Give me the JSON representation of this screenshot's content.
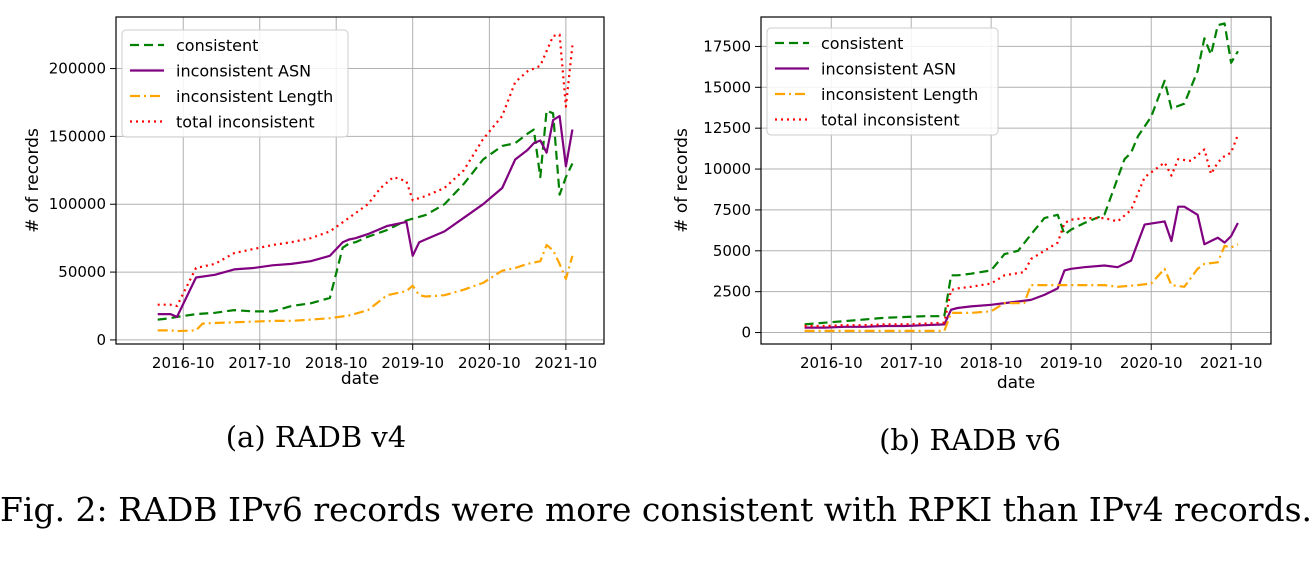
{
  "figure": {
    "caption": "Fig. 2: RADB IPv6 records were more consistent with RPKI than IPv4 records."
  },
  "chart_data": [
    {
      "type": "line",
      "subcaption": "(a) RADB v4",
      "title": "",
      "xlabel": "date",
      "ylabel": "# of records",
      "xlim": [
        "2015-11-15",
        "2022-04-01"
      ],
      "ylim": [
        -3000,
        238000
      ],
      "x_ticks": [
        "2016-10",
        "2017-10",
        "2018-10",
        "2019-10",
        "2020-10",
        "2021-10"
      ],
      "y_ticks": [
        0,
        50000,
        100000,
        150000,
        200000
      ],
      "grid": true,
      "legend_position": "top-left",
      "series": [
        {
          "name": "consistent",
          "color": "#008000",
          "style": "dashed",
          "x": [
            "2016-06-01",
            "2016-08-01",
            "2016-09-01",
            "2016-12-01",
            "2017-03-01",
            "2017-06-01",
            "2017-09-01",
            "2017-12-01",
            "2018-03-01",
            "2018-06-01",
            "2018-09-01",
            "2018-11-01",
            "2018-12-01",
            "2019-01-01",
            "2019-03-01",
            "2019-06-01",
            "2019-09-01",
            "2019-12-01",
            "2020-03-01",
            "2020-06-01",
            "2020-09-01",
            "2020-12-01",
            "2021-02-01",
            "2021-04-01",
            "2021-05-01",
            "2021-06-01",
            "2021-07-01",
            "2021-08-01",
            "2021-09-01",
            "2021-10-01",
            "2021-11-01"
          ],
          "values": [
            15000,
            16000,
            17000,
            19000,
            20000,
            22000,
            21000,
            21000,
            25000,
            27000,
            31000,
            68000,
            71000,
            72000,
            76000,
            81000,
            88000,
            92000,
            100000,
            115000,
            133000,
            143000,
            145000,
            152000,
            155000,
            120000,
            169000,
            167000,
            107000,
            120000,
            130000
          ]
        },
        {
          "name": "inconsistent ASN",
          "color": "#800080",
          "style": "solid",
          "x": [
            "2016-06-01",
            "2016-08-01",
            "2016-09-01",
            "2016-12-01",
            "2017-03-01",
            "2017-06-01",
            "2017-09-01",
            "2017-12-01",
            "2018-03-01",
            "2018-06-01",
            "2018-09-01",
            "2018-11-01",
            "2018-12-01",
            "2019-01-01",
            "2019-03-01",
            "2019-06-01",
            "2019-09-01",
            "2019-10-01",
            "2019-11-01",
            "2019-12-01",
            "2020-03-01",
            "2020-06-01",
            "2020-09-01",
            "2020-12-01",
            "2021-02-01",
            "2021-04-01",
            "2021-05-01",
            "2021-06-01",
            "2021-07-01",
            "2021-08-01",
            "2021-09-01",
            "2021-10-01",
            "2021-11-01"
          ],
          "values": [
            19000,
            19000,
            17000,
            46000,
            48000,
            52000,
            53000,
            55000,
            56000,
            58000,
            62000,
            72000,
            74000,
            75000,
            78000,
            84000,
            87000,
            62000,
            72000,
            74000,
            80000,
            90000,
            100000,
            112000,
            133000,
            140000,
            145000,
            147000,
            138000,
            162000,
            165000,
            128000,
            155000
          ]
        },
        {
          "name": "inconsistent Length",
          "color": "#ffa500",
          "style": "dashdot",
          "x": [
            "2016-06-01",
            "2016-08-01",
            "2016-09-01",
            "2016-12-01",
            "2017-01-01",
            "2017-03-01",
            "2017-06-01",
            "2017-09-01",
            "2017-12-01",
            "2018-03-01",
            "2018-06-01",
            "2018-09-01",
            "2018-12-01",
            "2019-03-01",
            "2019-06-01",
            "2019-09-01",
            "2019-10-01",
            "2019-11-01",
            "2019-12-01",
            "2020-03-01",
            "2020-06-01",
            "2020-09-01",
            "2020-12-01",
            "2021-02-01",
            "2021-04-01",
            "2021-06-01",
            "2021-07-01",
            "2021-08-01",
            "2021-09-01",
            "2021-10-01",
            "2021-11-01"
          ],
          "values": [
            7000,
            7000,
            6500,
            7000,
            12000,
            12500,
            13000,
            13500,
            14000,
            14000,
            15000,
            16000,
            18000,
            22000,
            33000,
            36000,
            40000,
            33000,
            32000,
            33000,
            37000,
            42000,
            51000,
            53000,
            56000,
            58000,
            70000,
            66000,
            56000,
            45000,
            62000
          ]
        },
        {
          "name": "total inconsistent",
          "color": "#ff0000",
          "style": "dotted",
          "x": [
            "2016-06-01",
            "2016-08-01",
            "2016-09-01",
            "2016-12-01",
            "2017-03-01",
            "2017-06-01",
            "2017-09-01",
            "2017-12-01",
            "2018-03-01",
            "2018-06-01",
            "2018-09-01",
            "2018-12-01",
            "2019-03-01",
            "2019-05-01",
            "2019-07-01",
            "2019-09-01",
            "2019-10-01",
            "2019-12-01",
            "2020-03-01",
            "2020-06-01",
            "2020-09-01",
            "2020-12-01",
            "2021-02-01",
            "2021-04-01",
            "2021-06-01",
            "2021-08-01",
            "2021-09-01",
            "2021-10-01",
            "2021-11-01"
          ],
          "values": [
            26000,
            26000,
            25000,
            53000,
            56000,
            64000,
            67000,
            70000,
            72000,
            75000,
            80000,
            90000,
            100000,
            112000,
            120000,
            117000,
            103000,
            106000,
            112000,
            125000,
            148000,
            165000,
            190000,
            198000,
            202000,
            224000,
            225000,
            172000,
            217000
          ]
        }
      ]
    },
    {
      "type": "line",
      "subcaption": "(b) RADB v6",
      "title": "",
      "xlabel": "date",
      "ylabel": "# of records",
      "xlim": [
        "2015-11-15",
        "2022-04-01"
      ],
      "ylim": [
        -700,
        19300
      ],
      "x_ticks": [
        "2016-10",
        "2017-10",
        "2018-10",
        "2019-10",
        "2020-10",
        "2021-10"
      ],
      "y_ticks": [
        0,
        2500,
        5000,
        7500,
        10000,
        12500,
        15000,
        17500
      ],
      "grid": true,
      "legend_position": "top-left",
      "series": [
        {
          "name": "consistent",
          "color": "#008000",
          "style": "dashed",
          "x": [
            "2016-06-01",
            "2016-09-01",
            "2016-12-01",
            "2017-03-01",
            "2017-06-01",
            "2017-09-01",
            "2017-12-01",
            "2018-03-01",
            "2018-04-01",
            "2018-05-01",
            "2018-07-01",
            "2018-10-01",
            "2018-12-01",
            "2019-02-01",
            "2019-04-01",
            "2019-06-01",
            "2019-08-01",
            "2019-09-01",
            "2019-10-01",
            "2019-12-01",
            "2020-03-01",
            "2020-06-01",
            "2020-07-01",
            "2020-08-01",
            "2020-10-01",
            "2020-12-01",
            "2021-01-01",
            "2021-03-01",
            "2021-05-01",
            "2021-06-01",
            "2021-07-01",
            "2021-08-01",
            "2021-09-01",
            "2021-10-01",
            "2021-11-01"
          ],
          "values": [
            500,
            600,
            700,
            800,
            900,
            950,
            1000,
            1000,
            3500,
            3500,
            3600,
            3800,
            4800,
            5000,
            6000,
            7000,
            7200,
            6000,
            6300,
            6700,
            7200,
            10600,
            11000,
            12000,
            13200,
            15400,
            13700,
            14000,
            16000,
            18000,
            17000,
            18800,
            18900,
            16500,
            17200
          ]
        },
        {
          "name": "inconsistent ASN",
          "color": "#800080",
          "style": "solid",
          "x": [
            "2016-06-01",
            "2016-09-01",
            "2016-12-01",
            "2017-03-01",
            "2017-06-01",
            "2017-09-01",
            "2017-12-01",
            "2018-03-01",
            "2018-04-01",
            "2018-05-01",
            "2018-07-01",
            "2018-10-01",
            "2018-12-01",
            "2019-02-01",
            "2019-04-01",
            "2019-06-01",
            "2019-08-01",
            "2019-09-01",
            "2019-10-01",
            "2019-12-01",
            "2020-03-01",
            "2020-05-01",
            "2020-07-01",
            "2020-09-01",
            "2020-12-01",
            "2021-01-01",
            "2021-02-01",
            "2021-03-01",
            "2021-05-01",
            "2021-06-01",
            "2021-07-01",
            "2021-08-01",
            "2021-09-01",
            "2021-10-01",
            "2021-11-01"
          ],
          "values": [
            300,
            300,
            350,
            350,
            400,
            400,
            450,
            500,
            1400,
            1500,
            1600,
            1700,
            1800,
            1900,
            2000,
            2300,
            2700,
            3800,
            3900,
            4000,
            4100,
            4000,
            4400,
            6600,
            6800,
            5600,
            7700,
            7700,
            7200,
            5400,
            5600,
            5800,
            5500,
            5900,
            6700
          ]
        },
        {
          "name": "inconsistent Length",
          "color": "#ffa500",
          "style": "dashdot",
          "x": [
            "2016-06-01",
            "2016-09-01",
            "2016-12-01",
            "2017-03-01",
            "2017-06-01",
            "2017-09-01",
            "2017-12-01",
            "2018-03-01",
            "2018-04-01",
            "2018-07-01",
            "2018-10-01",
            "2018-12-01",
            "2019-03-01",
            "2019-04-01",
            "2019-06-01",
            "2019-09-01",
            "2019-12-01",
            "2020-03-01",
            "2020-05-01",
            "2020-08-01",
            "2020-10-01",
            "2020-12-01",
            "2021-01-01",
            "2021-03-01",
            "2021-05-01",
            "2021-06-01",
            "2021-08-01",
            "2021-09-01",
            "2021-10-01",
            "2021-11-01"
          ],
          "values": [
            100,
            100,
            100,
            100,
            100,
            100,
            100,
            100,
            1200,
            1200,
            1300,
            1800,
            1800,
            2900,
            2900,
            2900,
            2900,
            2900,
            2800,
            2900,
            3000,
            3900,
            2900,
            2800,
            3900,
            4200,
            4300,
            5300,
            5200,
            5400
          ]
        },
        {
          "name": "total inconsistent",
          "color": "#ff0000",
          "style": "dotted",
          "x": [
            "2016-06-01",
            "2016-09-01",
            "2016-12-01",
            "2017-03-01",
            "2017-06-01",
            "2017-09-01",
            "2017-12-01",
            "2018-03-01",
            "2018-04-01",
            "2018-05-01",
            "2018-07-01",
            "2018-10-01",
            "2018-12-01",
            "2019-03-01",
            "2019-04-01",
            "2019-06-01",
            "2019-08-01",
            "2019-09-01",
            "2019-10-01",
            "2019-12-01",
            "2020-03-01",
            "2020-05-01",
            "2020-07-01",
            "2020-09-01",
            "2020-12-01",
            "2021-01-01",
            "2021-02-01",
            "2021-04-01",
            "2021-06-01",
            "2021-07-01",
            "2021-08-01",
            "2021-09-01",
            "2021-10-01",
            "2021-11-01"
          ],
          "values": [
            400,
            400,
            450,
            450,
            500,
            500,
            550,
            600,
            2600,
            2700,
            2800,
            3000,
            3500,
            3700,
            4500,
            5000,
            5500,
            6700,
            6900,
            7000,
            7000,
            6800,
            7500,
            9500,
            10400,
            9600,
            10600,
            10500,
            11200,
            9700,
            10400,
            10800,
            11000,
            12100
          ]
        }
      ]
    }
  ]
}
